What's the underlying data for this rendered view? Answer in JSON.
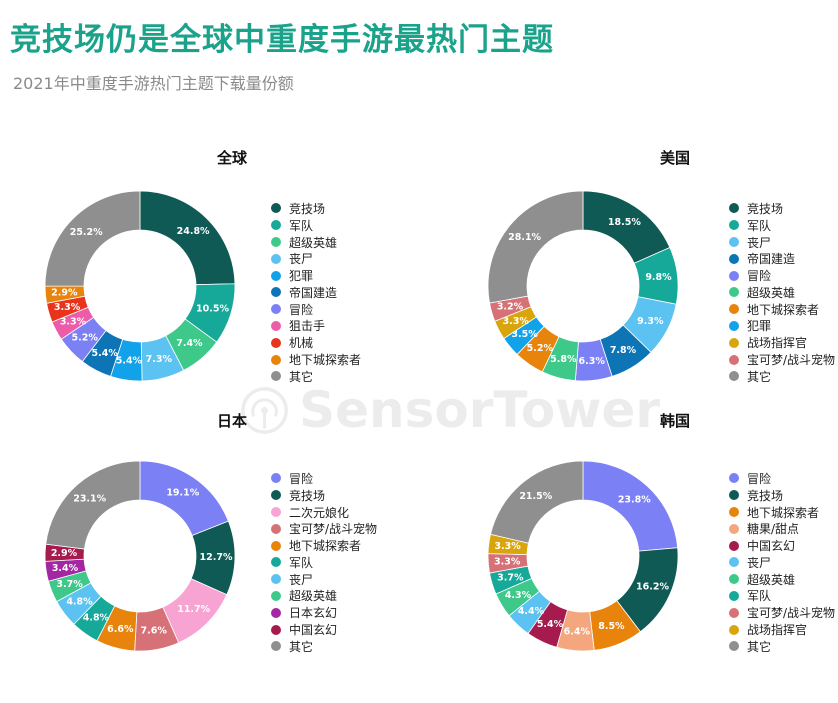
{
  "header": {
    "title": "竞技场仍是全球中重度手游最热门主题",
    "subtitle": "2021年中重度手游热门主题下载量份额"
  },
  "watermark": {
    "text": "SensorTower"
  },
  "colors": {
    "竞技场": "#0f5a55",
    "军队": "#16a898",
    "超级英雄": "#3ec98a",
    "丧尸": "#5bc2f2",
    "犯罪": "#12a2ea",
    "帝国建造": "#0d74b5",
    "冒险": "#7b80f4",
    "狙击手": "#ec5ca9",
    "机械": "#e9341d",
    "地下城探索者": "#e8840c",
    "其它": "#8f8f8f",
    "战场指挥官": "#d8a60c",
    "宝可梦/战斗宠物": "#d67277",
    "二次元娘化": "#f7a4d3",
    "日本玄幻": "#a327a2",
    "中国玄幻": "#a61b4e",
    "糖果/甜点": "#f4a77e"
  },
  "chart_data": [
    {
      "type": "pie",
      "title": "全球",
      "series": [
        {
          "label": "竞技场",
          "value": 24.8,
          "display": "24.8%"
        },
        {
          "label": "军队",
          "value": 10.5,
          "display": "10.5%"
        },
        {
          "label": "超级英雄",
          "value": 7.4,
          "display": "7.4%"
        },
        {
          "label": "丧尸",
          "value": 7.3,
          "display": "7.3%"
        },
        {
          "label": "犯罪",
          "value": 5.4,
          "display": "5.4%"
        },
        {
          "label": "帝国建造",
          "value": 5.4,
          "display": "5.4%"
        },
        {
          "label": "冒险",
          "value": 5.2,
          "display": "5.2%"
        },
        {
          "label": "狙击手",
          "value": 3.3,
          "display": "3.3%"
        },
        {
          "label": "机械",
          "value": 3.3,
          "display": "3.3%"
        },
        {
          "label": "地下城探索者",
          "value": 2.9,
          "display": "2.9%"
        },
        {
          "label": "其它",
          "value": 25.2,
          "display": "25.2%"
        }
      ]
    },
    {
      "type": "pie",
      "title": "美国",
      "series": [
        {
          "label": "竞技场",
          "value": 18.5,
          "display": "18.5%"
        },
        {
          "label": "军队",
          "value": 9.8,
          "display": "9.8%"
        },
        {
          "label": "丧尸",
          "value": 9.3,
          "display": "9.3%"
        },
        {
          "label": "帝国建造",
          "value": 7.8,
          "display": "7.8%"
        },
        {
          "label": "冒险",
          "value": 6.3,
          "display": "6.3%"
        },
        {
          "label": "超级英雄",
          "value": 5.8,
          "display": "5.8%"
        },
        {
          "label": "地下城探索者",
          "value": 5.2,
          "display": "5.2%"
        },
        {
          "label": "犯罪",
          "value": 3.5,
          "display": "3.5%"
        },
        {
          "label": "战场指挥官",
          "value": 3.3,
          "display": "3.3%"
        },
        {
          "label": "宝可梦/战斗宠物",
          "value": 3.2,
          "display": "3.2%"
        },
        {
          "label": "其它",
          "value": 28.1,
          "display": "28.1%"
        }
      ]
    },
    {
      "type": "pie",
      "title": "日本",
      "series": [
        {
          "label": "冒险",
          "value": 19.1,
          "display": "19.1%"
        },
        {
          "label": "竞技场",
          "value": 12.7,
          "display": "12.7%"
        },
        {
          "label": "二次元娘化",
          "value": 11.7,
          "display": "11.7%"
        },
        {
          "label": "宝可梦/战斗宠物",
          "value": 7.6,
          "display": "7.6%"
        },
        {
          "label": "地下城探索者",
          "value": 6.6,
          "display": "6.6%"
        },
        {
          "label": "军队",
          "value": 4.8,
          "display": "4.8%"
        },
        {
          "label": "丧尸",
          "value": 4.8,
          "display": "4.8%"
        },
        {
          "label": "超级英雄",
          "value": 3.7,
          "display": "3.7%"
        },
        {
          "label": "日本玄幻",
          "value": 3.4,
          "display": "3.4%"
        },
        {
          "label": "中国玄幻",
          "value": 2.9,
          "display": "2.9%"
        },
        {
          "label": "其它",
          "value": 23.1,
          "display": "23.1%"
        }
      ]
    },
    {
      "type": "pie",
      "title": "韩国",
      "series": [
        {
          "label": "冒险",
          "value": 23.8,
          "display": "23.8%"
        },
        {
          "label": "竞技场",
          "value": 16.2,
          "display": "16.2%"
        },
        {
          "label": "地下城探索者",
          "value": 8.5,
          "display": "8.5%"
        },
        {
          "label": "糖果/甜点",
          "value": 6.4,
          "display": "6.4%"
        },
        {
          "label": "中国玄幻",
          "value": 5.4,
          "display": "5.4%"
        },
        {
          "label": "丧尸",
          "value": 4.4,
          "display": "4.4%"
        },
        {
          "label": "超级英雄",
          "value": 4.3,
          "display": "4.3%"
        },
        {
          "label": "军队",
          "value": 3.7,
          "display": "3.7%"
        },
        {
          "label": "宝可梦/战斗宠物",
          "value": 3.3,
          "display": "3.3%"
        },
        {
          "label": "战场指挥官",
          "value": 3.3,
          "display": "3.3%"
        },
        {
          "label": "其它",
          "value": 21.5,
          "display": "21.5%"
        }
      ]
    }
  ]
}
